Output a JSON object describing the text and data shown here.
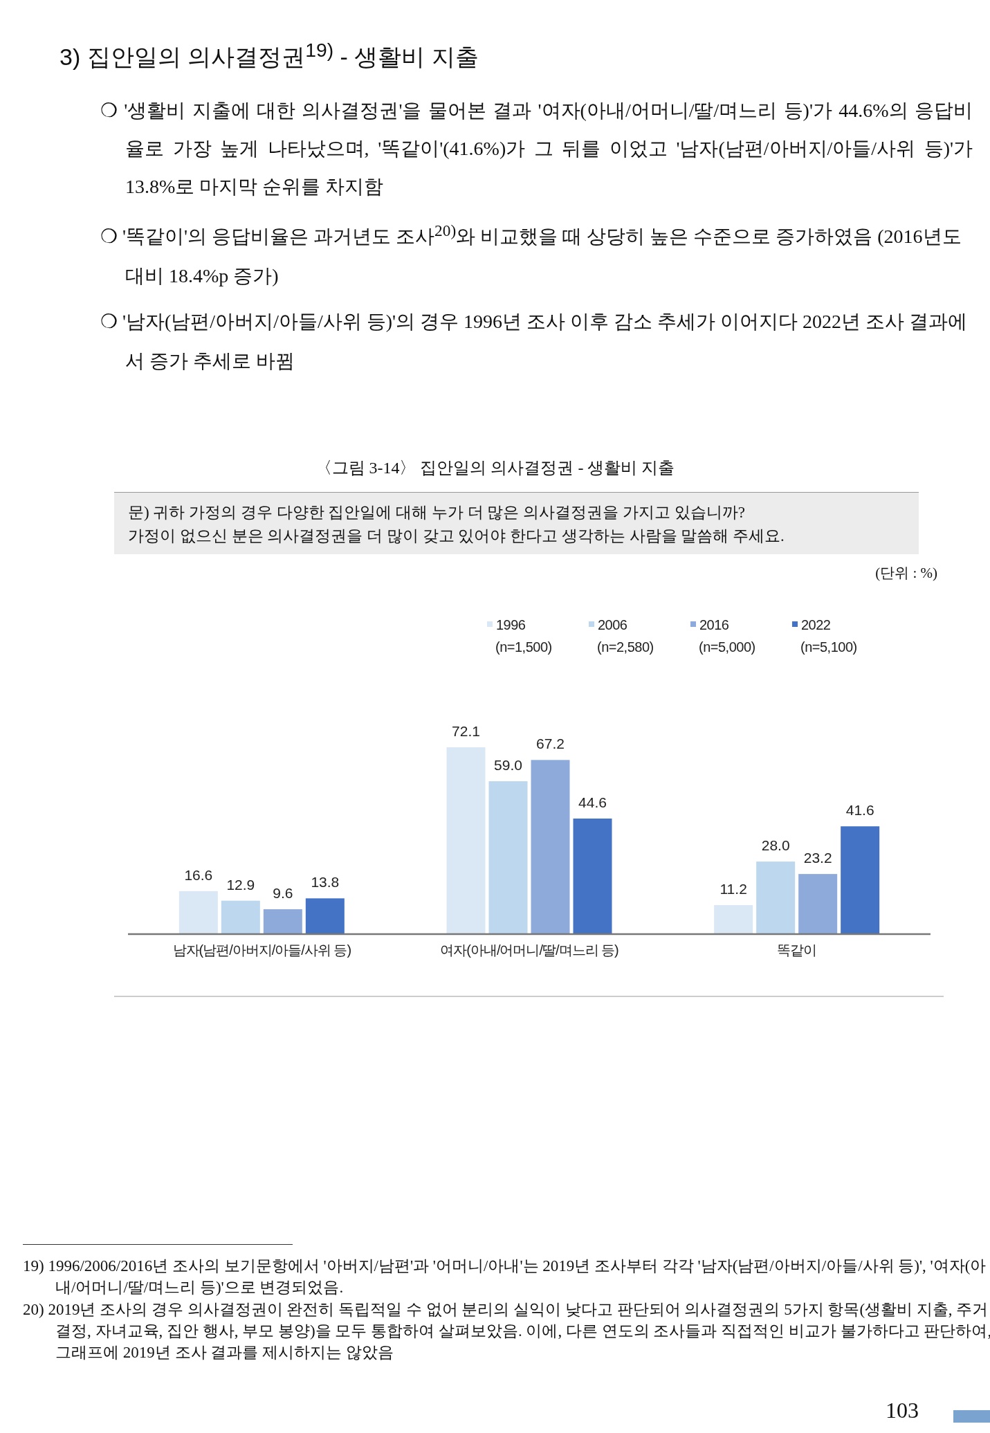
{
  "chart_data": {
    "type": "bar",
    "title": "〈그림 3-14〉 집안일의 의사결정권 - 생활비 지출",
    "categories": [
      "남자(남편/아버지/아들/사위 등)",
      "여자(아내/어머니/딸/며느리 등)",
      "똑같이"
    ],
    "series": [
      {
        "name": "1996\n(n=1,500)",
        "color": "#dae7f5",
        "values": [
          16.6,
          72.1,
          11.2
        ],
        "value_labels": [
          "16.6",
          "72.1",
          "11.2"
        ]
      },
      {
        "name": "2006\n(n=2,580)",
        "color": "#bdd7ee",
        "values": [
          12.9,
          59.0,
          28.0
        ],
        "value_labels": [
          "12.9",
          "59.0",
          "28.0"
        ]
      },
      {
        "name": "2016\n(n=5,000)",
        "color": "#8eaadb",
        "values": [
          9.6,
          67.2,
          23.2
        ],
        "value_labels": [
          "9.6",
          "67.2",
          "23.2"
        ]
      },
      {
        "name": "2022\n(n=5,100)",
        "color": "#4472c4",
        "values": [
          13.8,
          44.6,
          41.6
        ],
        "value_labels": [
          "13.8",
          "44.6",
          "41.6"
        ]
      }
    ],
    "legend": "top",
    "annotations": [
      "3) 집안일의 의사결정권$^{19)}$ - 생활비 지출",
      "❍ '생활비 지출에 대한 의사결정권'을 물어본 결과 '여자(아내/어머니/딸/며느리 등)'가 44.6%의 응답비율로 가장 높게 나타났으며, '똑같이'(41.6%)가 그 뒤를 이었고 '남자(남편/아버지/아들/사위 등)'가 13.8%로 마지막 순위를 차지함",
      "❍ '똑같이'의 응답비율은 과거년도 조사$^{20)}$와 비교했을 때 상당히 높은 수준으로 증가하였음 (2016년도 대비 18.4%p 증가)",
      "❍ '남자(남편/아버지/아들/사위 등)'의 경우 1996년 조사 이후 감소 추세가 이어지다 2022년 조사 결과에서 증가 추세로 바뀜",
      "문) 귀하 가정의 경우 다양한 집안일에 대해 누가 더 많은 의사결정권을 가지고 있습니까?\n가정이 없으신 분은 의사결정권을 더 많이 갖고 있어야 한다고 생각하는 사람을 말씀해 주세요.",
      "(단위 : %)",
      "19) 1996/2006/2016년 조사의 보기문항에서 '아버지/남편'과 '어머니/아내'는 2019년 조사부터 각각 '남자(남편/아버지/아들/사위 등)', '여자(아내/어머니/딸/며느리 등)'으로 변경되었음.",
      "20) 2019년 조사의 경우 의사결정권이 완전히 독립적일 수 없어 분리의 실익이 낮다고 판단되어 의사결정권의 5가지 항목(생활비 지출, 주거 결정, 자녀교육, 집안 행사, 부모 봉양)을 모두 통합하여 살펴보았음. 이에, 다른 연도의 조사들과 직접적인 비교가 불가하다고 판단하여, 그래프에 2019년 조사 결과를 제시하지는 않았음",
      "103"
    ]
  }
}
